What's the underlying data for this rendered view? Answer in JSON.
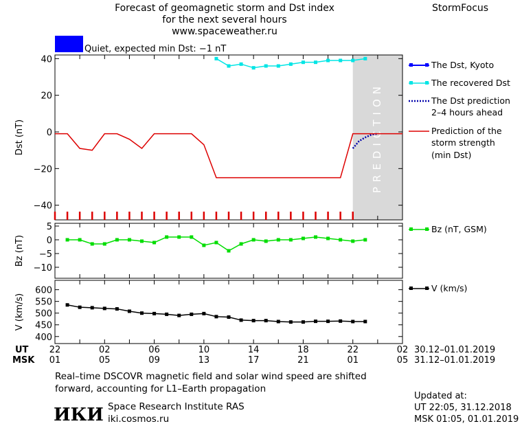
{
  "header": {
    "title_line1": "Forecast of geomagnetic storm and Dst index",
    "title_line2": "for the next several hours",
    "title_line3": "www.spaceweather.ru",
    "brand": "StormFocus"
  },
  "status": {
    "text": "Quiet, expected min Dst: −1 nT",
    "color": "#0000ff"
  },
  "chart_data": [
    {
      "type": "line",
      "panel": "dst",
      "ylabel": "Dst (nT)",
      "ylim": [
        -48,
        42
      ],
      "yticks": [
        "40",
        "20",
        "0",
        "−20",
        "−40"
      ],
      "ytick_values": [
        40,
        20,
        0,
        -20,
        -40
      ],
      "x_unit": "hours from 22 UT 30.12",
      "xlim": [
        0,
        28
      ],
      "series": [
        {
          "name": "The Dst, Kyoto",
          "color": "#0000ff",
          "x": [],
          "values": []
        },
        {
          "name": "The recovered Dst",
          "color": "#00e5e5",
          "x": [
            13,
            14,
            15,
            16,
            17,
            18,
            19,
            20,
            21,
            22,
            23,
            24,
            25
          ],
          "values": [
            40,
            36,
            37,
            35,
            36,
            36,
            37,
            38,
            38,
            39,
            39,
            39,
            40
          ]
        },
        {
          "name": "The Dst prediction 2–4 hours ahead",
          "color": "#0000aa",
          "x": [
            24,
            24.5,
            25,
            25.5,
            26
          ],
          "values": [
            -9,
            -5,
            -3,
            -1.5,
            -1
          ]
        },
        {
          "name": "Prediction of the storm strength (min Dst)",
          "color": "#dd0000",
          "x": [
            0,
            1,
            2,
            3,
            4,
            5,
            6,
            7,
            8,
            9,
            10,
            11,
            12,
            13,
            14,
            15,
            16,
            17,
            18,
            19,
            20,
            21,
            22,
            23,
            24,
            25,
            26,
            27,
            28
          ],
          "values": [
            -1,
            -1,
            -9,
            -10,
            -1,
            -1,
            -4,
            -9,
            -1,
            -1,
            -1,
            -1,
            -7,
            -25,
            -25,
            -25,
            -25,
            -25,
            -25,
            -25,
            -25,
            -25,
            -25,
            -25,
            -1,
            -1,
            -1,
            -1,
            -1
          ]
        }
      ],
      "prediction_label": "PREDICTION",
      "prediction_range": [
        24,
        28
      ]
    },
    {
      "type": "line",
      "panel": "bz",
      "ylabel": "Bz (nT)",
      "ylim": [
        -14,
        6
      ],
      "yticks": [
        "5",
        "0",
        "−5",
        "−10"
      ],
      "ytick_values": [
        5,
        0,
        -5,
        -10
      ],
      "series": [
        {
          "name": "Bz (nT, GSM)",
          "color": "#00dd00",
          "x": [
            1,
            2,
            3,
            4,
            5,
            6,
            7,
            8,
            9,
            10,
            11,
            12,
            13,
            14,
            15,
            16,
            17,
            18,
            19,
            20,
            21,
            22,
            23,
            24,
            25
          ],
          "values": [
            0,
            0,
            -1.5,
            -1.5,
            0,
            0,
            -0.5,
            -1,
            1,
            1,
            1,
            -2,
            -1,
            -4,
            -1.5,
            0,
            -0.5,
            0,
            0,
            0.5,
            1,
            0.5,
            0,
            -0.5,
            0
          ]
        }
      ]
    },
    {
      "type": "line",
      "panel": "v",
      "ylabel": "V (km/s)",
      "ylim": [
        370,
        640
      ],
      "yticks": [
        "600",
        "550",
        "500",
        "450",
        "400"
      ],
      "ytick_values": [
        600,
        550,
        500,
        450,
        400
      ],
      "series": [
        {
          "name": "V (km/s)",
          "color": "#000000",
          "x": [
            1,
            2,
            3,
            4,
            5,
            6,
            7,
            8,
            9,
            10,
            11,
            12,
            13,
            14,
            15,
            16,
            17,
            18,
            19,
            20,
            21,
            22,
            23,
            24,
            25
          ],
          "values": [
            535,
            525,
            523,
            520,
            518,
            508,
            500,
            498,
            495,
            490,
            495,
            498,
            485,
            483,
            470,
            468,
            468,
            464,
            462,
            462,
            465,
            465,
            466,
            464,
            464
          ]
        }
      ]
    }
  ],
  "time_axis": {
    "ut_label": "UT",
    "msk_label": "MSK",
    "ut_ticks": [
      "22",
      "02",
      "06",
      "10",
      "14",
      "18",
      "22",
      "02"
    ],
    "msk_ticks": [
      "01",
      "05",
      "09",
      "13",
      "17",
      "21",
      "01",
      "05"
    ],
    "ut_dates": "30.12–01.01.2019",
    "msk_dates": "31.12–01.01.2019"
  },
  "footer": {
    "note_line1": "Real–time DSCOVR magnetic field and solar wind speed are shifted",
    "note_line2": "forward, accounting for L1–Earth propagation",
    "logo_text": "ИКИ",
    "institute": "Space Research Institute RAS",
    "site": "iki.cosmos.ru",
    "updated_label": "Updated at:",
    "updated_ut": "UT   22:05, 31.12.2018",
    "updated_msk": "MSK 01:05, 01.01.2019"
  }
}
